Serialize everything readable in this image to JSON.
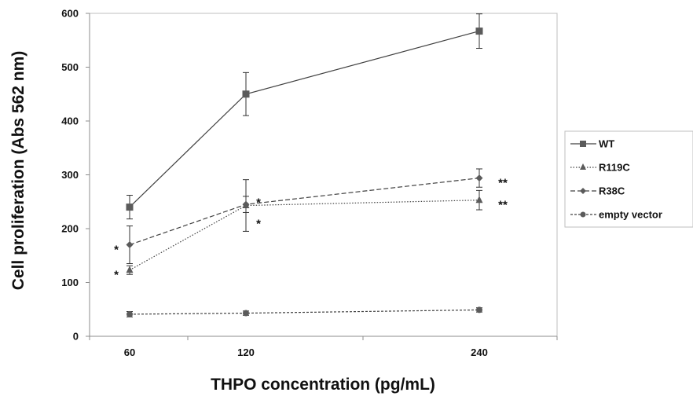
{
  "chart_data": {
    "type": "line",
    "title": "",
    "xlabel": "THPO concentration (pg/mL)",
    "ylabel": "Cell proliferation (Abs 562 nm)",
    "x": [
      "60",
      "120",
      "240"
    ],
    "xlim": [
      "(left padding)",
      "(right padding)"
    ],
    "ylim": [
      0,
      600
    ],
    "yticks": [
      0,
      100,
      200,
      300,
      400,
      500,
      600
    ],
    "grid": false,
    "legend_position": "right",
    "series": [
      {
        "name": "WT",
        "marker": "square",
        "dash": "solid",
        "color": "#555555",
        "values": [
          240,
          450,
          567
        ],
        "errors": [
          22,
          40,
          32
        ]
      },
      {
        "name": "R119C",
        "marker": "triangle",
        "dash": "dotted",
        "color": "#555555",
        "values": [
          123,
          243,
          253
        ],
        "errors": [
          8,
          48,
          18
        ]
      },
      {
        "name": "R38C",
        "marker": "diamond",
        "dash": "dashed",
        "color": "#555555",
        "values": [
          170,
          245,
          294
        ],
        "errors": [
          35,
          15,
          17
        ]
      },
      {
        "name": "empty vector",
        "marker": "circle",
        "dash": "short-dash",
        "color": "#555555",
        "values": [
          41,
          43,
          49
        ],
        "errors": [
          5,
          4,
          4
        ]
      }
    ],
    "annotations": [
      {
        "text": "*",
        "x": "60",
        "y": 170,
        "side": "left"
      },
      {
        "text": "*",
        "x": "60",
        "y": 123,
        "side": "left"
      },
      {
        "text": "*",
        "x": "120",
        "y": 258,
        "side": "right"
      },
      {
        "text": "*",
        "x": "120",
        "y": 218,
        "side": "right"
      },
      {
        "text": "**",
        "x": "240",
        "y": 294,
        "side": "right"
      },
      {
        "text": "**",
        "x": "240",
        "y": 253,
        "side": "right"
      }
    ]
  }
}
